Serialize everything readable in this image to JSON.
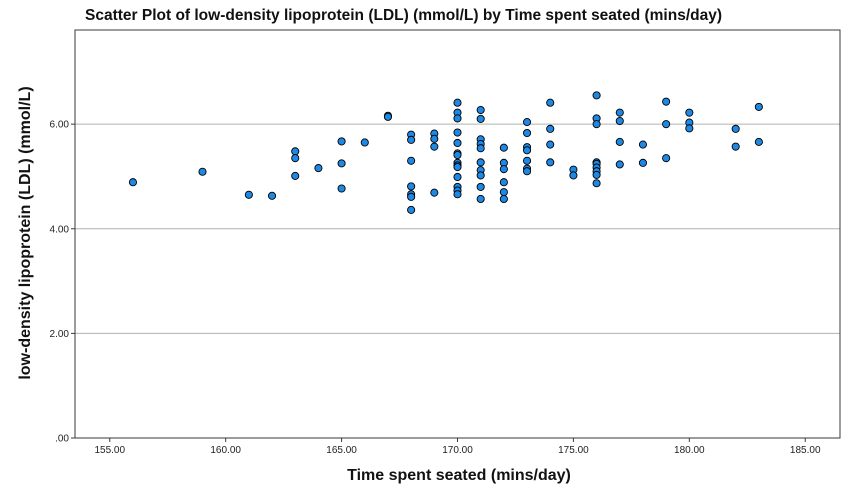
{
  "chart_data": {
    "type": "scatter",
    "title": "Scatter Plot of low-density lipoprotein (LDL) (mmol/L) by Time spent seated (mins/day)",
    "xlabel": "Time spent seated (mins/day)",
    "ylabel": "low-density lipoprotein (LDL) (mmol/L)",
    "xlim": [
      153.5,
      186.5
    ],
    "ylim": [
      0,
      7.8
    ],
    "xticks": [
      155,
      160,
      165,
      170,
      175,
      180,
      185
    ],
    "xtick_labels": [
      "155.00",
      "160.00",
      "165.00",
      "170.00",
      "175.00",
      "180.00",
      "185.00"
    ],
    "yticks": [
      0,
      2,
      4,
      6
    ],
    "ytick_labels": [
      ".00",
      "2.00",
      "4.00",
      "6.00"
    ],
    "grid": "horizontal",
    "legend": "none",
    "colors": {
      "marker_fill": "#1e88e5",
      "marker_stroke": "#000000",
      "gridline": "#b0b0b0"
    },
    "points": [
      [
        156,
        4.89
      ],
      [
        159,
        5.09
      ],
      [
        161,
        4.65
      ],
      [
        162,
        4.63
      ],
      [
        163,
        5.48
      ],
      [
        163,
        5.35
      ],
      [
        163,
        5.01
      ],
      [
        164,
        5.16
      ],
      [
        165,
        5.67
      ],
      [
        165,
        5.25
      ],
      [
        165,
        4.77
      ],
      [
        166,
        5.65
      ],
      [
        167,
        6.16
      ],
      [
        167,
        6.14
      ],
      [
        168,
        5.8
      ],
      [
        168,
        5.7
      ],
      [
        168,
        5.3
      ],
      [
        168,
        4.81
      ],
      [
        168,
        4.66
      ],
      [
        168,
        4.61
      ],
      [
        168,
        4.36
      ],
      [
        169,
        5.82
      ],
      [
        169,
        5.72
      ],
      [
        169,
        5.57
      ],
      [
        169,
        4.69
      ],
      [
        170,
        6.41
      ],
      [
        170,
        6.22
      ],
      [
        170,
        6.11
      ],
      [
        170,
        5.84
      ],
      [
        170,
        5.64
      ],
      [
        170,
        5.44
      ],
      [
        170,
        5.41
      ],
      [
        170,
        5.26
      ],
      [
        170,
        5.21
      ],
      [
        170,
        5.18
      ],
      [
        170,
        4.99
      ],
      [
        170,
        4.8
      ],
      [
        170,
        4.73
      ],
      [
        170,
        4.66
      ],
      [
        171,
        6.27
      ],
      [
        171,
        6.1
      ],
      [
        171,
        5.71
      ],
      [
        171,
        5.62
      ],
      [
        171,
        5.54
      ],
      [
        171,
        5.27
      ],
      [
        171,
        5.12
      ],
      [
        171,
        5.02
      ],
      [
        171,
        4.8
      ],
      [
        171,
        4.57
      ],
      [
        172,
        5.55
      ],
      [
        172,
        5.26
      ],
      [
        172,
        5.14
      ],
      [
        172,
        4.89
      ],
      [
        172,
        4.7
      ],
      [
        172,
        4.57
      ],
      [
        173,
        6.04
      ],
      [
        173,
        5.83
      ],
      [
        173,
        5.56
      ],
      [
        173,
        5.5
      ],
      [
        173,
        5.3
      ],
      [
        173,
        5.15
      ],
      [
        173,
        5.1
      ],
      [
        174,
        6.41
      ],
      [
        174,
        5.91
      ],
      [
        174,
        5.61
      ],
      [
        174,
        5.27
      ],
      [
        175,
        5.13
      ],
      [
        175,
        5.02
      ],
      [
        176,
        6.55
      ],
      [
        176,
        6.11
      ],
      [
        176,
        6.0
      ],
      [
        176,
        5.27
      ],
      [
        176,
        5.24
      ],
      [
        176,
        5.17
      ],
      [
        176,
        5.1
      ],
      [
        176,
        5.03
      ],
      [
        176,
        4.87
      ],
      [
        177,
        6.22
      ],
      [
        177,
        6.06
      ],
      [
        177,
        5.66
      ],
      [
        177,
        5.23
      ],
      [
        178,
        5.61
      ],
      [
        178,
        5.26
      ],
      [
        179,
        6.43
      ],
      [
        179,
        6.0
      ],
      [
        179,
        5.35
      ],
      [
        180,
        6.22
      ],
      [
        180,
        6.03
      ],
      [
        180,
        5.92
      ],
      [
        182,
        5.91
      ],
      [
        182,
        5.57
      ],
      [
        183,
        6.33
      ],
      [
        183,
        5.66
      ]
    ]
  }
}
